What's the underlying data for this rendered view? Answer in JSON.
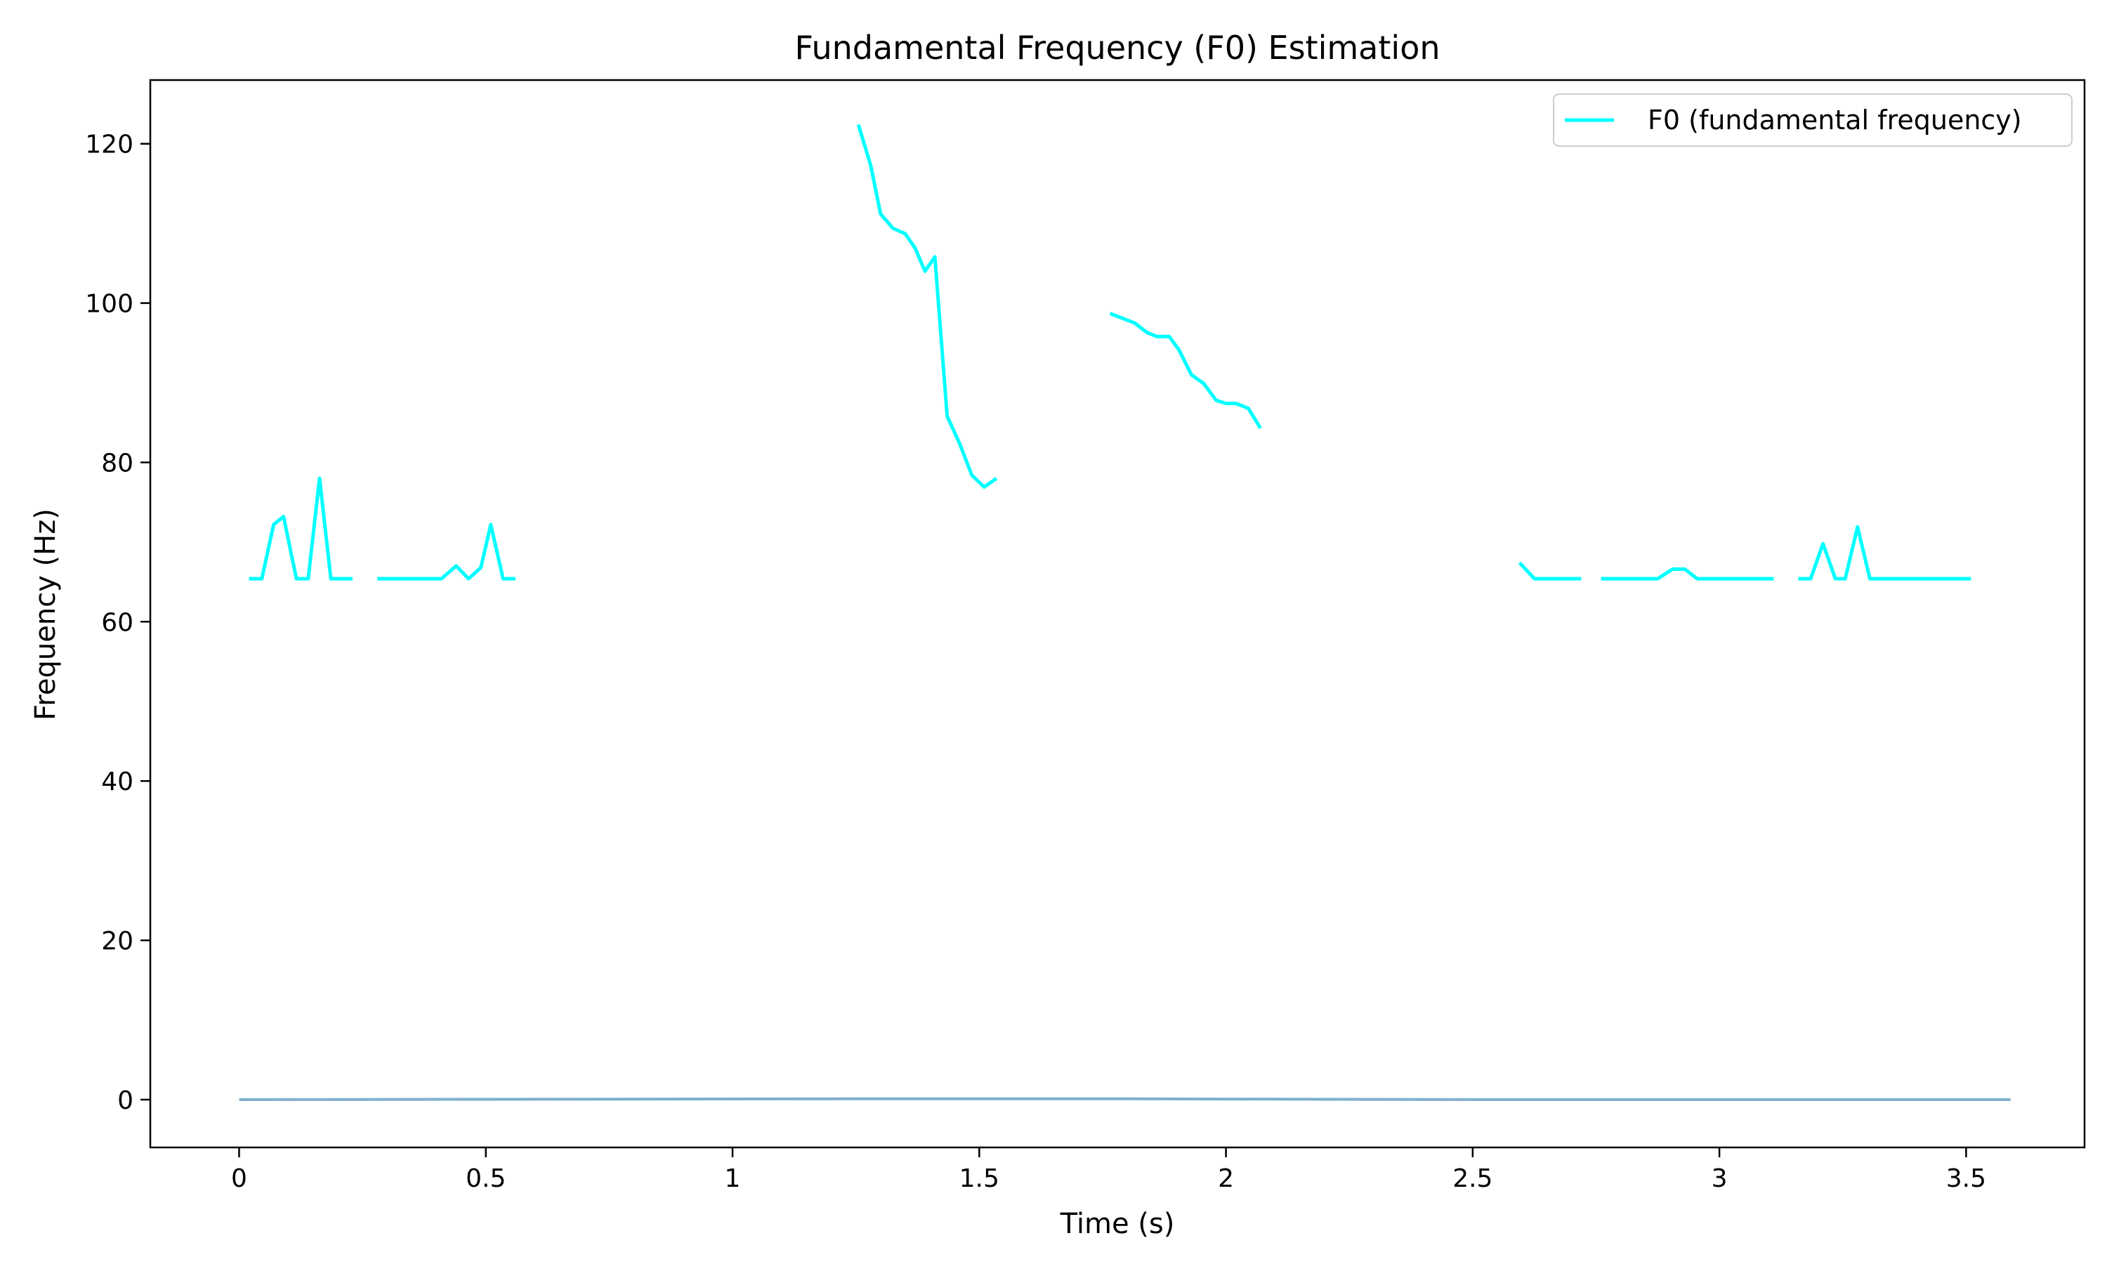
{
  "chart_data": {
    "type": "line",
    "title": "Fundamental Frequency (F0) Estimation",
    "xlabel": "Time (s)",
    "ylabel": "Frequency (Hz)",
    "xlim": [
      -0.18,
      3.74
    ],
    "ylim": [
      -6,
      128
    ],
    "xticks": [
      0,
      0.5,
      1,
      1.5,
      2,
      2.5,
      3,
      3.5
    ],
    "xtick_labels": [
      "0",
      "0.5",
      "1",
      "1.5",
      "2",
      "2.5",
      "3",
      "3.5"
    ],
    "yticks": [
      0,
      20,
      40,
      60,
      80,
      100,
      120
    ],
    "ytick_labels": [
      "0",
      "20",
      "40",
      "60",
      "80",
      "100",
      "120"
    ],
    "grid": false,
    "legend": {
      "position": "top-right"
    },
    "series": [
      {
        "name": "F0 (fundamental frequency)",
        "color": "#00ffff",
        "segments": [
          [
            [
              0.02,
              65.4
            ],
            [
              0.046,
              65.4
            ],
            [
              0.07,
              72.2
            ],
            [
              0.09,
              73.2
            ],
            [
              0.116,
              65.4
            ],
            [
              0.14,
              65.4
            ],
            [
              0.163,
              78.0
            ],
            [
              0.186,
              65.4
            ],
            [
              0.21,
              65.4
            ],
            [
              0.23,
              65.4
            ]
          ],
          [
            [
              0.28,
              65.4
            ],
            [
              0.32,
              65.4
            ],
            [
              0.36,
              65.4
            ],
            [
              0.41,
              65.4
            ],
            [
              0.44,
              67.0
            ],
            [
              0.465,
              65.4
            ],
            [
              0.49,
              66.8
            ],
            [
              0.51,
              72.2
            ],
            [
              0.535,
              65.4
            ],
            [
              0.56,
              65.4
            ]
          ],
          [
            [
              1.255,
              122.4
            ],
            [
              1.28,
              117.3
            ],
            [
              1.3,
              111.2
            ],
            [
              1.325,
              109.4
            ],
            [
              1.35,
              108.7
            ],
            [
              1.37,
              106.9
            ],
            [
              1.39,
              104.0
            ],
            [
              1.41,
              105.8
            ],
            [
              1.435,
              85.8
            ],
            [
              1.46,
              82.4
            ],
            [
              1.485,
              78.4
            ],
            [
              1.51,
              76.9
            ],
            [
              1.535,
              78.0
            ]
          ],
          [
            [
              1.765,
              98.7
            ],
            [
              1.79,
              98.1
            ],
            [
              1.815,
              97.5
            ],
            [
              1.84,
              96.3
            ],
            [
              1.86,
              95.8
            ],
            [
              1.885,
              95.8
            ],
            [
              1.905,
              94.1
            ],
            [
              1.93,
              91.0
            ],
            [
              1.955,
              89.9
            ],
            [
              1.98,
              87.8
            ],
            [
              2.0,
              87.4
            ],
            [
              2.02,
              87.4
            ],
            [
              2.045,
              86.8
            ],
            [
              2.07,
              84.3
            ]
          ],
          [
            [
              2.595,
              67.4
            ],
            [
              2.625,
              65.4
            ],
            [
              2.65,
              65.4
            ],
            [
              2.675,
              65.4
            ],
            [
              2.7,
              65.4
            ],
            [
              2.72,
              65.4
            ]
          ],
          [
            [
              2.76,
              65.4
            ],
            [
              2.8,
              65.4
            ],
            [
              2.85,
              65.4
            ],
            [
              2.875,
              65.4
            ],
            [
              2.905,
              66.6
            ],
            [
              2.93,
              66.6
            ],
            [
              2.955,
              65.4
            ],
            [
              3.0,
              65.4
            ],
            [
              3.05,
              65.4
            ],
            [
              3.11,
              65.4
            ]
          ],
          [
            [
              3.16,
              65.4
            ],
            [
              3.185,
              65.4
            ],
            [
              3.21,
              69.8
            ],
            [
              3.235,
              65.4
            ],
            [
              3.255,
              65.4
            ],
            [
              3.28,
              71.9
            ],
            [
              3.305,
              65.4
            ],
            [
              3.35,
              65.4
            ],
            [
              3.4,
              65.4
            ],
            [
              3.45,
              65.4
            ],
            [
              3.51,
              65.4
            ]
          ]
        ]
      },
      {
        "color": "#7fb0cc",
        "x": [
          0,
          1.25,
          1.4,
          1.8,
          2.5,
          3.59
        ],
        "y": [
          0,
          0.1,
          0.1,
          0.1,
          0,
          0
        ]
      }
    ]
  }
}
